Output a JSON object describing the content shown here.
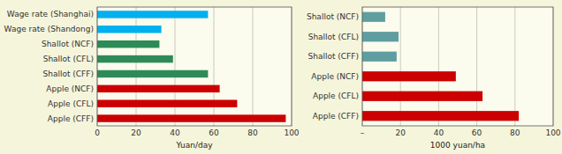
{
  "chart_data": [
    {
      "type": "bar",
      "orientation": "horizontal",
      "categories": [
        "Wage rate (Shanghai)",
        "Wage rate (Shandong)",
        "Shallot (NCF)",
        "Shallot (CFL)",
        "Shallot (CFF)",
        "Apple (NCF)",
        "Apple (CFL)",
        "Apple (CFF)"
      ],
      "values": [
        57,
        33,
        32,
        39,
        57,
        63,
        72,
        97
      ],
      "colors": [
        "#00b0f0",
        "#00b0f0",
        "#2e8b57",
        "#2e8b57",
        "#2e8b57",
        "#cc0000",
        "#cc0000",
        "#cc0000"
      ],
      "x_label": "Yuan/day",
      "xlim": [
        0,
        100
      ],
      "xticks": [
        0,
        20,
        40,
        60,
        80,
        100
      ],
      "grid": true
    },
    {
      "type": "bar",
      "orientation": "horizontal",
      "categories": [
        "Shallot (NCF)",
        "Shallot (CFL)",
        "Shallot (CFF)",
        "Apple (NCF)",
        "Apple (CFL)",
        "Apple (CFF)"
      ],
      "values": [
        12,
        19,
        18,
        49,
        63,
        82
      ],
      "colors": [
        "#5f9ea0",
        "#5f9ea0",
        "#5f9ea0",
        "#cc0000",
        "#cc0000",
        "#cc0000"
      ],
      "x_label": "1000 yuan/ha",
      "xlim": [
        0,
        100
      ],
      "xticks": [
        {
          "value": 0,
          "label": "–"
        },
        20,
        40,
        60,
        80,
        100
      ],
      "grid": true
    }
  ]
}
